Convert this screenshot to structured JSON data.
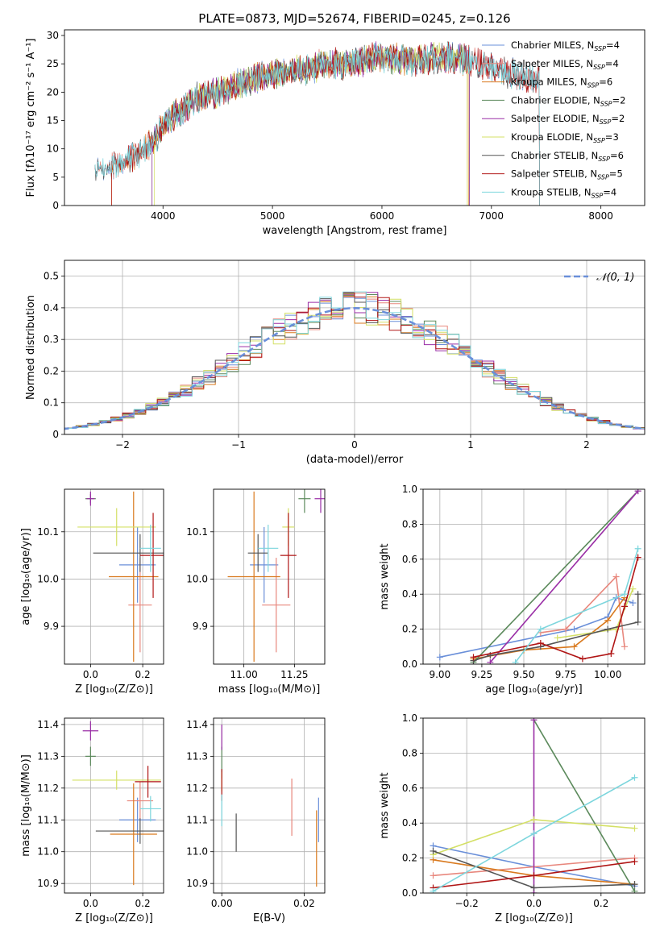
{
  "figure": {
    "title": "PLATE=0873, MJD=52674, FIBERID=0245, z=0.126"
  },
  "chart_data": [
    {
      "id": "spectrum",
      "type": "line",
      "title": "PLATE=0873, MJD=52674, FIBERID=0245, z=0.126",
      "xlabel": "wavelength [Angstrom, rest frame]",
      "ylabel": "Flux [fλ10⁻¹⁷ erg cm⁻² s⁻¹ A⁻¹]",
      "xlim": [
        3100,
        8400
      ],
      "ylim": [
        0,
        31
      ],
      "xticks": [
        4000,
        5000,
        6000,
        7000,
        8000
      ],
      "yticks": [
        0,
        5,
        10,
        15,
        20,
        25,
        30
      ],
      "grid": false,
      "legend_position": "top-right",
      "continuum": {
        "x": [
          3400,
          3500,
          3600,
          3700,
          3800,
          3900,
          4000,
          4100,
          4200,
          4300,
          4500,
          4700,
          4900,
          5100,
          5300,
          5500,
          5700,
          5900,
          6100,
          6300,
          6500,
          6700,
          6900,
          7100,
          7300,
          7500
        ],
        "y": [
          6.5,
          7,
          7.5,
          8.5,
          9.5,
          11,
          14,
          16,
          17,
          19,
          20,
          21.5,
          23,
          23.5,
          24,
          25,
          25,
          26,
          26,
          25.5,
          26,
          26,
          25,
          24,
          22.5,
          22
        ]
      },
      "series": [
        {
          "name": "Chabrier MILES",
          "nssp": "4",
          "color": "#6a8fd9",
          "xrange": [
            3380,
            7440
          ]
        },
        {
          "name": "Salpeter MILES",
          "nssp": "4",
          "color": "#e8877d",
          "xrange": [
            3380,
            7440
          ]
        },
        {
          "name": "Kroupa MILES",
          "nssp": "6",
          "color": "#d97a1f",
          "xrange": [
            3530,
            6790
          ]
        },
        {
          "name": "Chabrier ELODIE",
          "nssp": "2",
          "color": "#5c8a5c",
          "xrange": [
            3900,
            6800
          ]
        },
        {
          "name": "Salpeter ELODIE",
          "nssp": "2",
          "color": "#9a2ea6",
          "xrange": [
            3900,
            6800
          ]
        },
        {
          "name": "Kroupa ELODIE",
          "nssp": "3",
          "color": "#d4e066",
          "xrange": [
            3920,
            6780
          ]
        },
        {
          "name": "Chabrier STELIB",
          "nssp": "6",
          "color": "#555555",
          "xrange": [
            3380,
            7440
          ]
        },
        {
          "name": "Salpeter STELIB",
          "nssp": "5",
          "color": "#b01515",
          "xrange": [
            3530,
            7440
          ]
        },
        {
          "name": "Kroupa STELIB",
          "nssp": "4",
          "color": "#7dd6dd",
          "xrange": [
            3380,
            7440
          ]
        }
      ]
    },
    {
      "id": "residuals",
      "type": "line",
      "xlabel": "(data-model)/error",
      "ylabel": "Normed distribution",
      "xlim": [
        -2.5,
        2.5
      ],
      "ylim": [
        0,
        0.55
      ],
      "xticks": [
        -2,
        -1,
        0,
        1,
        2
      ],
      "xticklabels": [
        "−2",
        "−1",
        "0",
        "1",
        "2"
      ],
      "yticks": [
        0,
        0.1,
        0.2,
        0.3,
        0.4,
        0.5
      ],
      "grid": true,
      "legend_position": "top-right",
      "reference": {
        "name": "𝒩(0, 1)",
        "mean": 0,
        "sigma": 1,
        "color": "#6a8fd9"
      },
      "bin_width": 0.1
    },
    {
      "id": "z_age",
      "type": "scatter",
      "xlabel": "Z [log₁₀(Z/Z⊙)]",
      "ylabel": "age  [log₁₀(age/yr)]",
      "xlim": [
        -0.1,
        0.28
      ],
      "ylim": [
        9.82,
        10.19
      ],
      "xticks": [
        0,
        0.2
      ],
      "xticklabels": [
        "0.0",
        "0.2"
      ],
      "yticks": [
        9.9,
        10.0,
        10.1
      ],
      "yticklabels": [
        "9.9",
        "10.0",
        "10.1"
      ],
      "grid": true,
      "points": [
        {
          "series": "Chabrier MILES",
          "x": 0.18,
          "y": 10.03,
          "xerr": 0.07,
          "yerr": 0.08
        },
        {
          "series": "Salpeter MILES",
          "x": 0.19,
          "y": 9.945,
          "xerr": 0.045,
          "yerr": 0.1
        },
        {
          "series": "Kroupa MILES",
          "x": 0.165,
          "y": 10.005,
          "xerr": 0.095,
          "yerr": 0.18
        },
        {
          "series": "Chabrier ELODIE",
          "x": 0.0,
          "y": 10.17,
          "xerr": 0.02,
          "yerr": 0.01
        },
        {
          "series": "Salpeter ELODIE",
          "x": 0.0,
          "y": 10.17,
          "xerr": 0.015,
          "yerr": 0.015
        },
        {
          "series": "Kroupa ELODIE",
          "x": 0.1,
          "y": 10.11,
          "xerr": 0.15,
          "yerr": 0.04
        },
        {
          "series": "Chabrier STELIB",
          "x": 0.19,
          "y": 10.055,
          "xerr": 0.18,
          "yerr": 0.04
        },
        {
          "series": "Salpeter STELIB",
          "x": 0.24,
          "y": 10.05,
          "xerr": 0.05,
          "yerr": 0.09
        },
        {
          "series": "Kroupa STELIB",
          "x": 0.23,
          "y": 10.065,
          "xerr": 0.04,
          "yerr": 0.05
        }
      ]
    },
    {
      "id": "mass_age",
      "type": "scatter",
      "xlabel": "mass [log₁₀(M/M⊙)]",
      "xlim": [
        10.85,
        11.4
      ],
      "ylim": [
        9.82,
        10.19
      ],
      "xticks": [
        11.0,
        11.25
      ],
      "xticklabels": [
        "11.00",
        "11.25"
      ],
      "yticks": [
        9.9,
        10.0,
        10.1
      ],
      "yticklabels": [
        "9.9",
        "10.0",
        "10.1"
      ],
      "grid": true,
      "points": [
        {
          "series": "Chabrier MILES",
          "x": 11.1,
          "y": 10.03,
          "xerr": 0.07,
          "yerr": 0.08
        },
        {
          "series": "Salpeter MILES",
          "x": 11.16,
          "y": 9.945,
          "xerr": 0.07,
          "yerr": 0.1
        },
        {
          "series": "Kroupa MILES",
          "x": 11.05,
          "y": 10.005,
          "xerr": 0.13,
          "yerr": 0.18
        },
        {
          "series": "Chabrier ELODIE",
          "x": 11.3,
          "y": 10.17,
          "xerr": 0.03,
          "yerr": 0.03
        },
        {
          "series": "Salpeter ELODIE",
          "x": 11.38,
          "y": 10.17,
          "xerr": 0.03,
          "yerr": 0.03
        },
        {
          "series": "Kroupa ELODIE",
          "x": 11.22,
          "y": 10.11,
          "xerr": 0.03,
          "yerr": 0.04
        },
        {
          "series": "Chabrier STELIB",
          "x": 11.07,
          "y": 10.055,
          "xerr": 0.05,
          "yerr": 0.04
        },
        {
          "series": "Salpeter STELIB",
          "x": 11.22,
          "y": 10.05,
          "xerr": 0.04,
          "yerr": 0.09
        },
        {
          "series": "Kroupa STELIB",
          "x": 11.12,
          "y": 10.065,
          "xerr": 0.05,
          "yerr": 0.05
        }
      ]
    },
    {
      "id": "age_weight",
      "type": "line",
      "xlabel": "age  [log₁₀(age/yr)]",
      "ylabel": "mass weight",
      "xlim": [
        8.9,
        10.22
      ],
      "ylim": [
        0,
        1
      ],
      "xticks": [
        9.0,
        9.25,
        9.5,
        9.75,
        10.0
      ],
      "xticklabels": [
        "9.00",
        "9.25",
        "9.50",
        "9.75",
        "10.00"
      ],
      "yticks": [
        0,
        0.2,
        0.4,
        0.6,
        0.8,
        1.0
      ],
      "yticklabels": [
        "0.0",
        "0.2",
        "0.4",
        "0.6",
        "0.8",
        "1.0"
      ],
      "grid": true,
      "series": [
        {
          "name": "Chabrier MILES",
          "x": [
            9.0,
            9.8,
            10.0,
            10.05,
            10.15
          ],
          "y": [
            0.04,
            0.2,
            0.27,
            0.38,
            0.35
          ]
        },
        {
          "name": "Salpeter MILES",
          "x": [
            9.6,
            9.75,
            10.05,
            10.1
          ],
          "y": [
            0.18,
            0.2,
            0.5,
            0.1
          ]
        },
        {
          "name": "Kroupa MILES",
          "x": [
            9.2,
            9.5,
            9.8,
            10.0,
            10.1
          ],
          "y": [
            0.03,
            0.08,
            0.1,
            0.25,
            0.38
          ]
        },
        {
          "name": "Chabrier ELODIE",
          "x": [
            9.2,
            10.18
          ],
          "y": [
            0.01,
            0.99
          ]
        },
        {
          "name": "Salpeter ELODIE",
          "x": [
            9.3,
            10.18
          ],
          "y": [
            0.01,
            0.99
          ]
        },
        {
          "name": "Kroupa ELODIE",
          "x": [
            9.7,
            10.05,
            10.15
          ],
          "y": [
            0.15,
            0.2,
            0.43
          ]
        },
        {
          "name": "Chabrier STELIB",
          "x": [
            9.2,
            9.3,
            9.6,
            10.0,
            10.18,
            10.18
          ],
          "y": [
            0.02,
            0.05,
            0.1,
            0.2,
            0.24,
            0.4
          ]
        },
        {
          "name": "Salpeter STELIB",
          "x": [
            9.2,
            9.6,
            9.85,
            10.02,
            10.1,
            10.18
          ],
          "y": [
            0.04,
            0.12,
            0.03,
            0.06,
            0.33,
            0.61
          ]
        },
        {
          "name": "Kroupa STELIB",
          "x": [
            9.45,
            9.6,
            10.1,
            10.18
          ],
          "y": [
            0.01,
            0.2,
            0.4,
            0.66
          ]
        }
      ]
    },
    {
      "id": "z_mass",
      "type": "scatter",
      "ylabel": "mass [log₁₀(M/M⊙)]",
      "xlabel": "Z [log₁₀(Z/Z⊙)]",
      "xlim": [
        -0.1,
        0.28
      ],
      "ylim": [
        10.87,
        11.42
      ],
      "xticks": [
        0,
        0.2
      ],
      "xticklabels": [
        "0.0",
        "0.2"
      ],
      "yticks": [
        10.9,
        11.0,
        11.1,
        11.2,
        11.3,
        11.4
      ],
      "yticklabels": [
        "10.9",
        "11.0",
        "11.1",
        "11.2",
        "11.3",
        "11.4"
      ],
      "grid": true,
      "points": [
        {
          "series": "Chabrier MILES",
          "x": 0.18,
          "y": 11.1,
          "xerr": 0.07,
          "yerr": 0.07
        },
        {
          "series": "Salpeter MILES",
          "x": 0.19,
          "y": 11.16,
          "xerr": 0.05,
          "yerr": 0.06
        },
        {
          "series": "Kroupa MILES",
          "x": 0.165,
          "y": 11.055,
          "xerr": 0.09,
          "yerr": 0.16
        },
        {
          "series": "Chabrier ELODIE",
          "x": 0.0,
          "y": 11.3,
          "xerr": 0.02,
          "yerr": 0.03
        },
        {
          "series": "Salpeter ELODIE",
          "x": 0.0,
          "y": 11.38,
          "xerr": 0.03,
          "yerr": 0.03
        },
        {
          "series": "Kroupa ELODIE",
          "x": 0.1,
          "y": 11.225,
          "xerr": 0.17,
          "yerr": 0.03
        },
        {
          "series": "Chabrier STELIB",
          "x": 0.19,
          "y": 11.065,
          "xerr": 0.17,
          "yerr": 0.04
        },
        {
          "series": "Salpeter STELIB",
          "x": 0.22,
          "y": 11.22,
          "xerr": 0.05,
          "yerr": 0.05
        },
        {
          "series": "Kroupa STELIB",
          "x": 0.23,
          "y": 11.135,
          "xerr": 0.04,
          "yerr": 0.04
        }
      ]
    },
    {
      "id": "ebv_mass",
      "type": "scatter",
      "xlabel": "E(B-V)",
      "xlim": [
        -0.002,
        0.025
      ],
      "ylim": [
        10.87,
        11.42
      ],
      "xticks": [
        0,
        0.02
      ],
      "xticklabels": [
        "0.00",
        "0.02"
      ],
      "yticks": [
        10.9,
        11.0,
        11.1,
        11.2,
        11.3,
        11.4
      ],
      "yticklabels": [
        "10.9",
        "11.0",
        "11.1",
        "11.2",
        "11.3",
        "11.4"
      ],
      "grid": true,
      "points": [
        {
          "series": "Chabrier MILES",
          "x": 0.0235,
          "y": 11.1,
          "xerr": 0,
          "yerr": 0.07
        },
        {
          "series": "Salpeter MILES",
          "x": 0.017,
          "y": 11.14,
          "xerr": 0,
          "yerr": 0.09
        },
        {
          "series": "Kroupa MILES",
          "x": 0.023,
          "y": 11.01,
          "xerr": 0,
          "yerr": 0.12
        },
        {
          "series": "Chabrier ELODIE",
          "x": 0.0,
          "y": 11.28,
          "xerr": 0,
          "yerr": 0.05
        },
        {
          "series": "Salpeter ELODIE",
          "x": 0.0,
          "y": 11.36,
          "xerr": 0,
          "yerr": 0.04
        },
        {
          "series": "Kroupa ELODIE",
          "x": 0.0,
          "y": 11.22,
          "xerr": 0,
          "yerr": 0.03
        },
        {
          "series": "Chabrier STELIB",
          "x": 0.0035,
          "y": 11.06,
          "xerr": 0,
          "yerr": 0.06
        },
        {
          "series": "Salpeter STELIB",
          "x": 0.0,
          "y": 11.21,
          "xerr": 0,
          "yerr": 0.05
        },
        {
          "series": "Kroupa STELIB",
          "x": 0.0,
          "y": 11.13,
          "xerr": 0,
          "yerr": 0.05
        }
      ]
    },
    {
      "id": "z_weight",
      "type": "line",
      "xlabel": "Z [log₁₀(Z/Z⊙)]",
      "ylabel": "mass weight",
      "xlim": [
        -0.33,
        0.33
      ],
      "ylim": [
        0,
        1
      ],
      "xticks": [
        -0.2,
        0,
        0.2
      ],
      "xticklabels": [
        "−0.2",
        "0.0",
        "0.2"
      ],
      "yticks": [
        0,
        0.2,
        0.4,
        0.6,
        0.8,
        1.0
      ],
      "yticklabels": [
        "0.0",
        "0.2",
        "0.4",
        "0.6",
        "0.8",
        "1.0"
      ],
      "grid": true,
      "series": [
        {
          "name": "Chabrier MILES",
          "x": [
            -0.3,
            0.0,
            0.3
          ],
          "y": [
            0.27,
            0.15,
            0.04
          ]
        },
        {
          "name": "Salpeter MILES",
          "x": [
            -0.3,
            0.0,
            0.3
          ],
          "y": [
            0.1,
            0.15,
            0.2
          ]
        },
        {
          "name": "Kroupa MILES",
          "x": [
            -0.3,
            0.0,
            0.3
          ],
          "y": [
            0.19,
            0.1,
            0.05
          ]
        },
        {
          "name": "Chabrier ELODIE",
          "x": [
            0.0,
            0.3
          ],
          "y": [
            0.99,
            0.01
          ]
        },
        {
          "name": "Salpeter ELODIE",
          "x": [
            0.0,
            0.0
          ],
          "y": [
            0.0,
            0.99
          ]
        },
        {
          "name": "Kroupa ELODIE",
          "x": [
            -0.3,
            0.0,
            0.3
          ],
          "y": [
            0.22,
            0.42,
            0.37
          ]
        },
        {
          "name": "Chabrier STELIB",
          "x": [
            -0.3,
            0.0,
            0.3
          ],
          "y": [
            0.24,
            0.03,
            0.05
          ]
        },
        {
          "name": "Salpeter STELIB",
          "x": [
            -0.3,
            0.0,
            0.3
          ],
          "y": [
            0.03,
            0.1,
            0.18
          ]
        },
        {
          "name": "Kroupa STELIB",
          "x": [
            -0.3,
            0.0,
            0.3
          ],
          "y": [
            0.01,
            0.34,
            0.66
          ]
        }
      ]
    }
  ]
}
